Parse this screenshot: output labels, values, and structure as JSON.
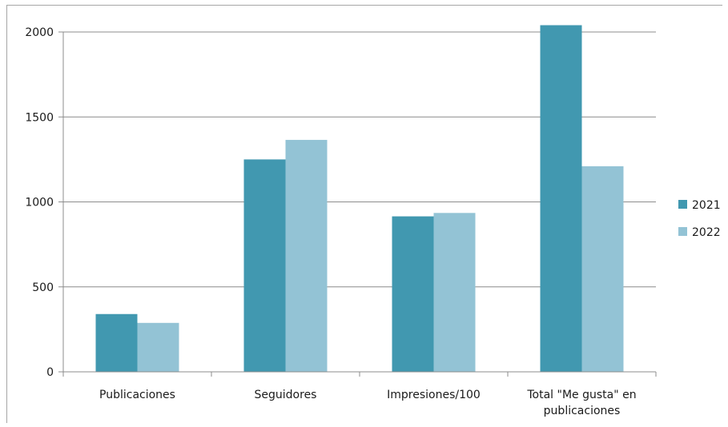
{
  "chart_data": {
    "type": "bar",
    "categories": [
      "Publicaciones",
      "Seguidores",
      "Impresiones/100",
      "Total \"Me gusta\" en publicaciones"
    ],
    "category_lines": [
      [
        "Publicaciones"
      ],
      [
        "Seguidores"
      ],
      [
        "Impresiones/100"
      ],
      [
        "Total \"Me gusta\" en",
        "publicaciones"
      ]
    ],
    "series": [
      {
        "name": "2021",
        "values": [
          340,
          1250,
          915,
          2040
        ],
        "color": "#4198b0"
      },
      {
        "name": "2022",
        "values": [
          288,
          1365,
          935,
          1210
        ],
        "color": "#93c3d5"
      }
    ],
    "ylim": [
      0,
      2000
    ],
    "yticks": [
      0,
      500,
      1000,
      1500,
      2000
    ],
    "title": "",
    "xlabel": "",
    "ylabel": "",
    "grid": true,
    "legend_position": "right"
  }
}
